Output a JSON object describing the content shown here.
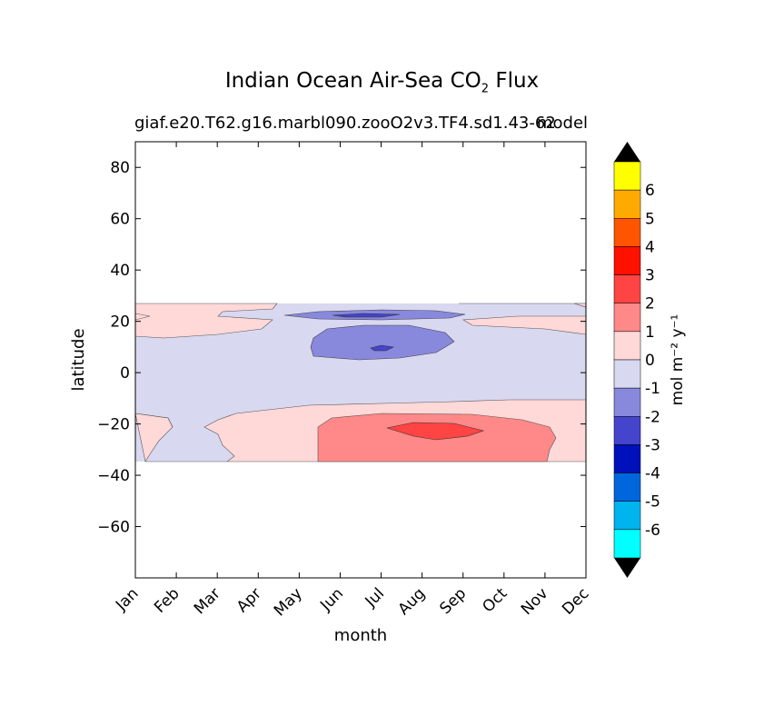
{
  "title_main": "Indian Ocean Air-Sea CO",
  "title_sub": "2",
  "title_end": " Flux",
  "subtitle_case": "giaf.e20.T62.g16.marbl090.zooO2v3.TF4.sd1.43-62",
  "subtitle_model": "model",
  "chart_data": {
    "type": "contourf",
    "xlabel": "month",
    "ylabel": "latitude",
    "x_ticks": [
      "Jan",
      "Feb",
      "Mar",
      "Apr",
      "May",
      "Jun",
      "Jul",
      "Aug",
      "Sep",
      "Oct",
      "Nov",
      "Dec"
    ],
    "y_ticks": [
      80,
      60,
      40,
      20,
      0,
      -20,
      -40,
      -60
    ],
    "y_tick_labels": [
      "80",
      "60",
      "40",
      "20",
      "0",
      "−20",
      "−40",
      "−60"
    ],
    "xlim": [
      0,
      11
    ],
    "ylim": [
      -80,
      90
    ],
    "data_lat_range": [
      -34,
      27
    ],
    "colorbar": {
      "label": "mol m⁻² y⁻¹",
      "tick_labels": [
        "6",
        "5",
        "4",
        "3",
        "2",
        "1",
        "0",
        "-1",
        "-2",
        "-3",
        "-4",
        "-5",
        "-6"
      ],
      "levels": [
        {
          "range": "6 to 7",
          "color": "#ffff00"
        },
        {
          "range": "5 to 6",
          "color": "#ffaa00"
        },
        {
          "range": "4 to 5",
          "color": "#ff5500"
        },
        {
          "range": "3 to 4",
          "color": "#ff1100"
        },
        {
          "range": "2 to 3",
          "color": "#ff4444"
        },
        {
          "range": "1 to 2",
          "color": "#ff8888"
        },
        {
          "range": "0 to 1",
          "color": "#ffd8d8"
        },
        {
          "range": "-1 to 0",
          "color": "#d8d8f0"
        },
        {
          "range": "-2 to -1",
          "color": "#8888dd"
        },
        {
          "range": "-3 to -2",
          "color": "#4444cc"
        },
        {
          "range": "-4 to -3",
          "color": "#0011bb"
        },
        {
          "range": "-5 to -4",
          "color": "#0066dd"
        },
        {
          "range": "-6 to -5",
          "color": "#00b4ee"
        },
        {
          "range": "-7 to -6",
          "color": "#00ffff"
        }
      ],
      "extend_color": "#000000"
    },
    "regions": [
      {
        "level": "-1 to 0",
        "description": "broad band over equator, ~-15 to 20 lat, all months"
      },
      {
        "level": "0 to 1",
        "description": "north band ~20 to 27 lat and southern band -15 to -34 lat"
      },
      {
        "level": "-2 to -1",
        "description": "Jun-Sep near 10 lat and Jun-Sep near 22 lat"
      },
      {
        "level": "-3 to -2",
        "description": "Jul near 10 lat and 22 lat"
      },
      {
        "level": "1 to 2",
        "description": "Jun-Nov, -18 to -34 lat"
      },
      {
        "level": "2 to 3",
        "description": "Aug-Sep near -22 lat"
      }
    ]
  }
}
